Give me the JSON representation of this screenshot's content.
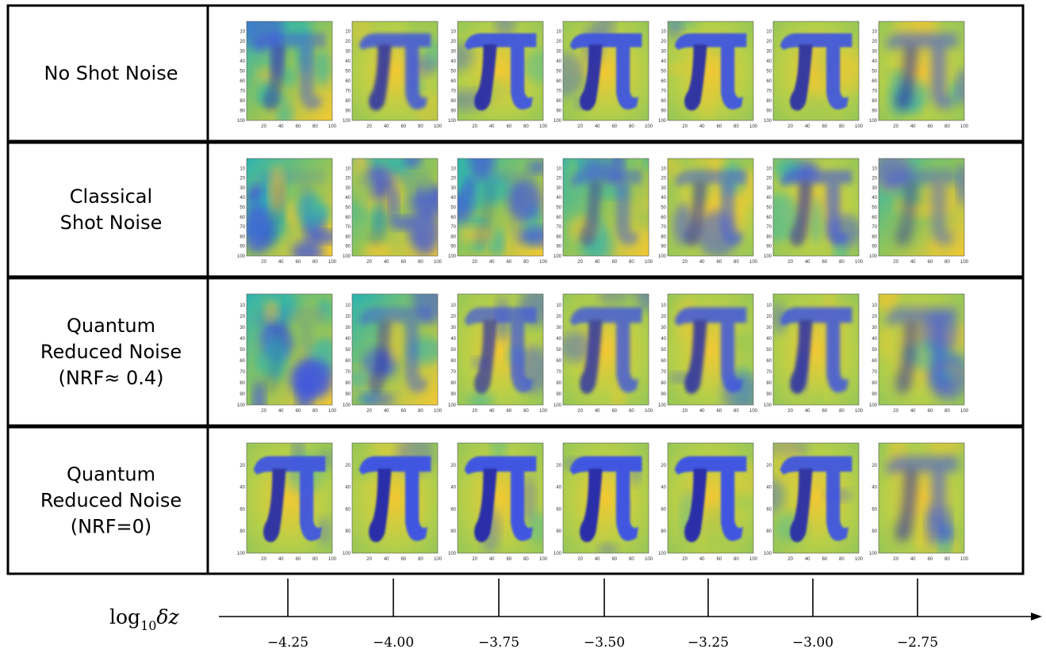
{
  "rows": [
    {
      "lines": [
        "No Shot Noise"
      ],
      "ytick_labels": [
        "10",
        "20",
        "30",
        "40",
        "50",
        "60",
        "70",
        "80",
        "90",
        "100"
      ],
      "clarity": [
        0.45,
        0.85,
        0.95,
        0.95,
        0.95,
        0.92,
        0.6
      ]
    },
    {
      "lines": [
        "Classical",
        "Shot Noise"
      ],
      "ytick_labels": [
        "10",
        "20",
        "30",
        "40",
        "50",
        "60",
        "70",
        "80",
        "90",
        "100"
      ],
      "clarity": [
        0.0,
        0.05,
        0.15,
        0.45,
        0.5,
        0.6,
        0.45
      ]
    },
    {
      "lines": [
        "Quantum",
        "Reduced Noise",
        "(NRF≈ 0.4)"
      ],
      "ytick_labels": [
        "10",
        "20",
        "30",
        "40",
        "50",
        "60",
        "70",
        "80",
        "90",
        "100"
      ],
      "clarity": [
        0.05,
        0.45,
        0.7,
        0.8,
        0.85,
        0.85,
        0.55
      ]
    },
    {
      "lines": [
        "Quantum",
        "Reduced Noise",
        "(NRF=0)"
      ],
      "ytick_labels": [
        "20",
        "40",
        "60",
        "80",
        "100"
      ],
      "clarity": [
        0.95,
        1.0,
        1.0,
        1.0,
        1.0,
        0.95,
        0.6
      ]
    }
  ],
  "xtick_labels": [
    "20",
    "40",
    "60",
    "80",
    "100"
  ],
  "axis": {
    "label_main": "log",
    "label_sub": "10",
    "label_tail": "δz",
    "ticks": [
      "−4.25",
      "−4.00",
      "−3.75",
      "−3.50",
      "−3.25",
      "−3.00",
      "−2.75"
    ]
  },
  "colors": {
    "yellow": "#f2c833",
    "green": "#8fc45a",
    "teal": "#2fb3b0",
    "blue": "#3f57e0",
    "dark_blue": "#2c2fa8"
  }
}
